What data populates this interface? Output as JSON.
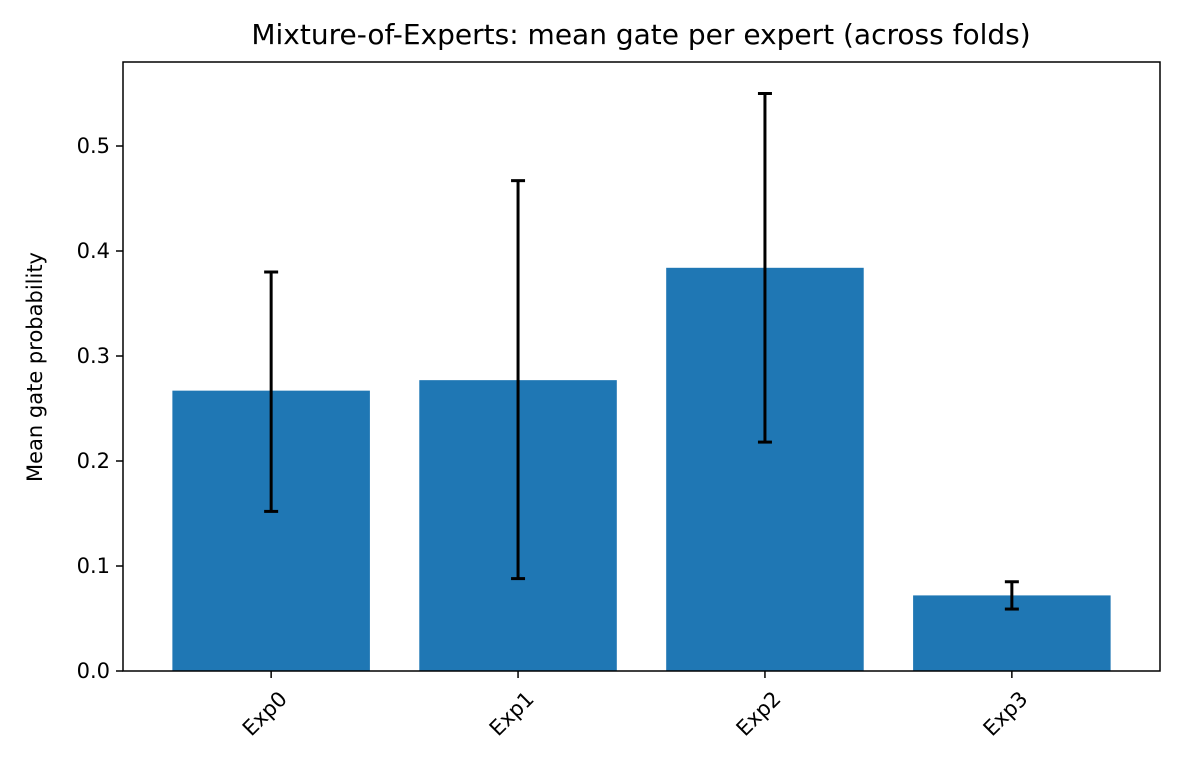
{
  "chart_data": {
    "type": "bar",
    "title": "Mixture-of-Experts: mean gate per expert (across folds)",
    "xlabel": "",
    "ylabel": "Mean gate probability",
    "categories": [
      "Exp0",
      "Exp1",
      "Exp2",
      "Exp3"
    ],
    "series": [
      {
        "values": [
          0.267,
          0.277,
          0.384,
          0.072
        ],
        "error_low": [
          0.152,
          0.088,
          0.218,
          0.059
        ],
        "error_high": [
          0.38,
          0.467,
          0.55,
          0.085
        ]
      }
    ],
    "yticks": [
      "0.0",
      "0.1",
      "0.2",
      "0.3",
      "0.4",
      "0.5"
    ],
    "ylim": [
      0,
      0.58
    ],
    "grid": false,
    "legend": "none",
    "bar_color": "#1f77b4",
    "error_color": "#000000",
    "x_tick_rotation_deg": 45
  }
}
